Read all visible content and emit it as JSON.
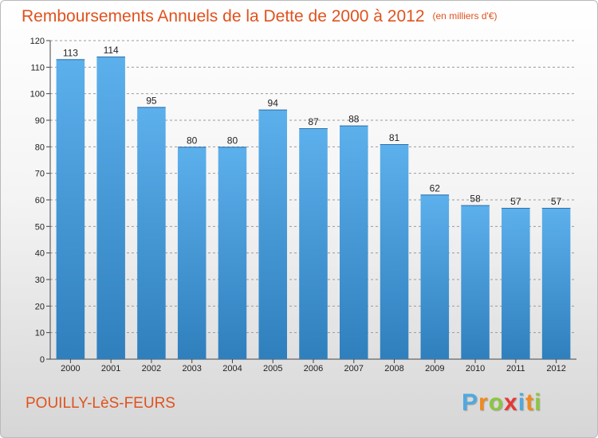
{
  "title": "Remboursements Annuels de la Dette de 2000 à 2012",
  "subtitle": "(en milliers d'€)",
  "footer": {
    "place": "POUILLY-LèS-FEURS"
  },
  "logo": {
    "letters": [
      "P",
      "r",
      "o",
      "x",
      "i",
      "t",
      "i"
    ],
    "colors": [
      "#4fa9e0",
      "#f08a1c",
      "#8cc63f",
      "#e53935",
      "#4fa9e0",
      "#f08a1c",
      "#8cc63f"
    ]
  },
  "colors": {
    "bar_top": "#5cb0ec",
    "bar_bottom": "#2f7fbd",
    "title": "#e0521e",
    "grid": "#9a9a9a"
  },
  "chart_data": {
    "type": "bar",
    "categories": [
      "2000",
      "2001",
      "2002",
      "2003",
      "2004",
      "2005",
      "2006",
      "2007",
      "2008",
      "2009",
      "2010",
      "2011",
      "2012"
    ],
    "values": [
      113,
      114,
      95,
      80,
      80,
      94,
      87,
      88,
      81,
      62,
      58,
      57,
      57
    ],
    "yticks": [
      0,
      10,
      20,
      30,
      40,
      50,
      60,
      70,
      80,
      90,
      100,
      110,
      120
    ],
    "ylim": [
      0,
      120
    ],
    "grid": true,
    "grid_style": "dashed-horizontal",
    "data_labels": true
  }
}
